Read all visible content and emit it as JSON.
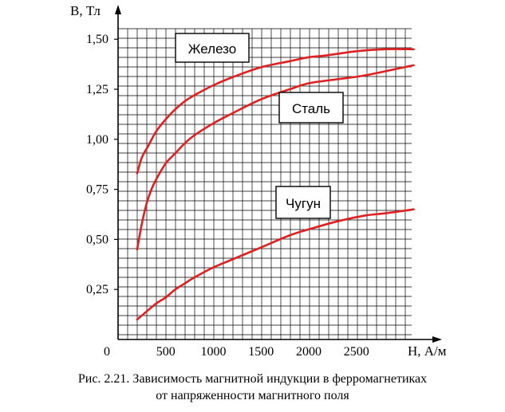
{
  "chart_data": {
    "type": "line",
    "ylabel": "B, Тл",
    "xlabel": "H, А/м",
    "origin_label": "0",
    "x_ticks": [
      500,
      1000,
      1500,
      2000,
      2500
    ],
    "x_tick_labels": [
      "500",
      "1000",
      "1500",
      "2000",
      "2500"
    ],
    "y_ticks": [
      0.25,
      0.5,
      0.75,
      1.0,
      1.25,
      1.5
    ],
    "y_tick_labels": [
      "0,25",
      "0,50",
      "0,75",
      "1,00",
      "1,25",
      "1,50"
    ],
    "xlim": [
      0,
      3100
    ],
    "ylim": [
      0,
      1.6
    ],
    "grid": true,
    "series": [
      {
        "name": "Железо",
        "color": "#e02020",
        "x": [
          200,
          250,
          320,
          400,
          500,
          600,
          700,
          800,
          1000,
          1200,
          1500,
          1800,
          2000,
          2200,
          2500,
          2800,
          3100
        ],
        "y": [
          0.83,
          0.91,
          0.97,
          1.04,
          1.1,
          1.15,
          1.19,
          1.22,
          1.27,
          1.31,
          1.36,
          1.39,
          1.41,
          1.42,
          1.44,
          1.45,
          1.45
        ]
      },
      {
        "name": "Сталь",
        "color": "#e02020",
        "x": [
          200,
          250,
          300,
          350,
          400,
          500,
          600,
          700,
          800,
          1000,
          1200,
          1500,
          1800,
          2000,
          2300,
          2600,
          3100
        ],
        "y": [
          0.45,
          0.58,
          0.68,
          0.75,
          0.8,
          0.88,
          0.93,
          0.98,
          1.02,
          1.08,
          1.13,
          1.2,
          1.25,
          1.28,
          1.3,
          1.32,
          1.37
        ]
      },
      {
        "name": "Чугун",
        "color": "#e02020",
        "x": [
          200,
          300,
          400,
          500,
          600,
          700,
          800,
          1000,
          1200,
          1500,
          1800,
          2000,
          2300,
          2600,
          2800,
          3100
        ],
        "y": [
          0.1,
          0.14,
          0.18,
          0.21,
          0.25,
          0.28,
          0.31,
          0.36,
          0.4,
          0.46,
          0.52,
          0.55,
          0.59,
          0.62,
          0.63,
          0.65
        ]
      }
    ]
  },
  "caption": {
    "line1": "Рис. 2.21. Зависимость магнитной индукции в ферромагнетиках",
    "line2": "от напряженности магнитного поля"
  }
}
